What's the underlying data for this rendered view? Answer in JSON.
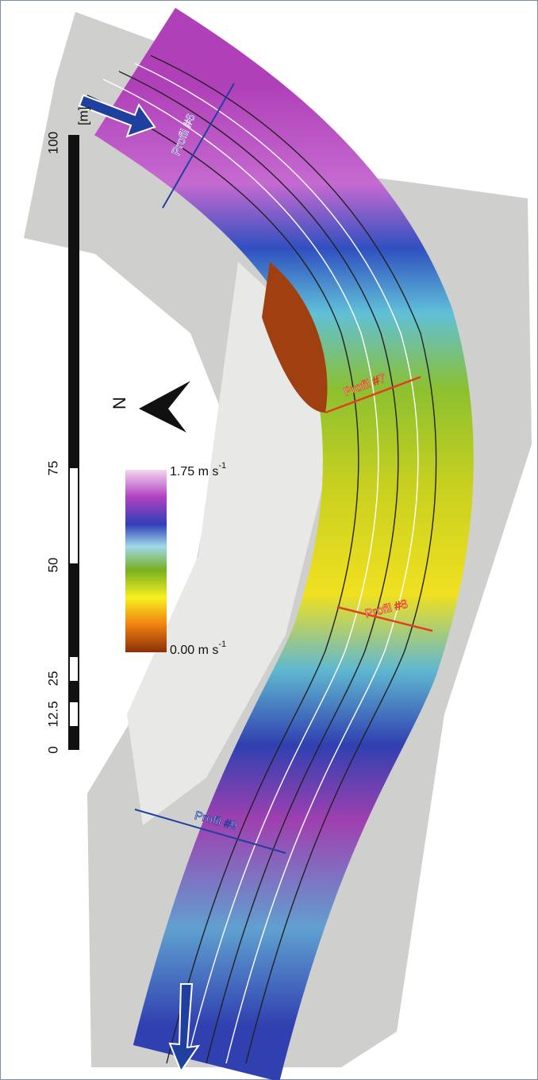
{
  "scale_bar": {
    "unit": "[m]",
    "labels": [
      "100",
      "75",
      "50",
      "25",
      "12.5",
      "0"
    ]
  },
  "north": "N",
  "legend": {
    "max": "1.75 m s",
    "max_exp": "-1",
    "min": "0.00 m s",
    "min_exp": "-1"
  },
  "profiles": [
    "Profil #6",
    "Profil #7",
    "Profil #8",
    "Profil #9"
  ]
}
